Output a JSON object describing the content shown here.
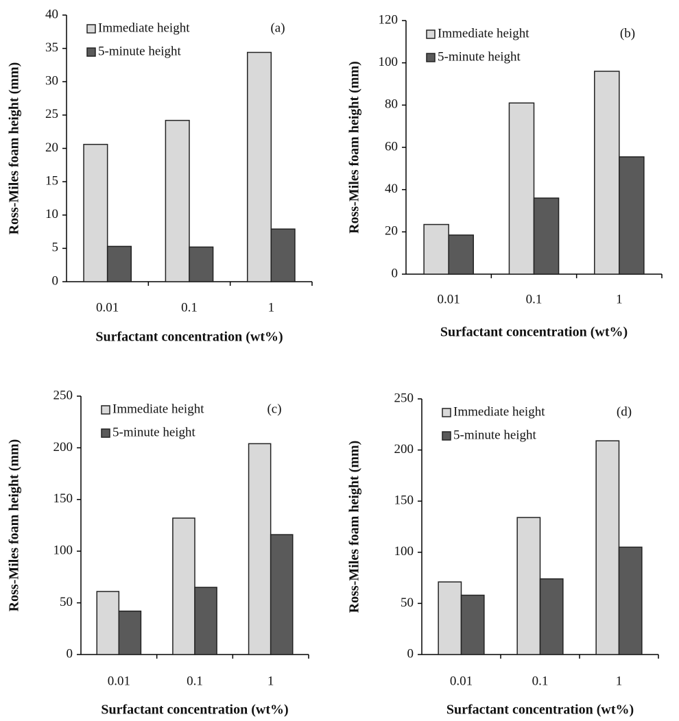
{
  "chart_data": [
    {
      "type": "bar",
      "annotation": "(a)",
      "ylabel": "Ross-Miles foam height (mm)",
      "xlabel": "Surfactant concentration (wt%)",
      "categories": [
        "0.01",
        "0.1",
        "1"
      ],
      "series": [
        {
          "name": "Immediate height",
          "color": "#d9d9d9",
          "values": [
            20.6,
            24.2,
            34.4
          ]
        },
        {
          "name": "5-minute height",
          "color": "#5a5a5a",
          "values": [
            5.3,
            5.2,
            7.9
          ]
        }
      ],
      "ylim": [
        0,
        40
      ],
      "yticks": [
        0,
        5,
        10,
        15,
        20,
        25,
        30,
        35,
        40
      ],
      "grid": false,
      "legend": "upper-left"
    },
    {
      "type": "bar",
      "annotation": "(b)",
      "ylabel": "Ross-Miles foam height (mm)",
      "xlabel": "Surfactant concentration (wt%)",
      "categories": [
        "0.01",
        "0.1",
        "1"
      ],
      "series": [
        {
          "name": "Immediate height",
          "color": "#d9d9d9",
          "values": [
            23.5,
            81,
            96
          ]
        },
        {
          "name": "5-minute height",
          "color": "#5a5a5a",
          "values": [
            18.5,
            36,
            55.5
          ]
        }
      ],
      "ylim": [
        0,
        120
      ],
      "yticks": [
        0,
        20,
        40,
        60,
        80,
        100,
        120
      ],
      "grid": false,
      "legend": "upper-left"
    },
    {
      "type": "bar",
      "annotation": "(c)",
      "ylabel": "Ross-Miles foam height (mm)",
      "xlabel": "Surfactant concentration (wt%)",
      "categories": [
        "0.01",
        "0.1",
        "1"
      ],
      "series": [
        {
          "name": "Immediate height",
          "color": "#d9d9d9",
          "values": [
            61,
            132,
            204
          ]
        },
        {
          "name": "5-minute height",
          "color": "#5a5a5a",
          "values": [
            42,
            65,
            116
          ]
        }
      ],
      "ylim": [
        0,
        250
      ],
      "yticks": [
        0,
        50,
        100,
        150,
        200,
        250
      ],
      "grid": false,
      "legend": "upper-left"
    },
    {
      "type": "bar",
      "annotation": "(d)",
      "ylabel": "Ross-Miles foam height (mm)",
      "xlabel": "Surfactant concentration (wt%)",
      "categories": [
        "0.01",
        "0.1",
        "1"
      ],
      "series": [
        {
          "name": "Immediate height",
          "color": "#d9d9d9",
          "values": [
            71,
            134,
            209
          ]
        },
        {
          "name": "5-minute height",
          "color": "#5a5a5a",
          "values": [
            58,
            74,
            105
          ]
        }
      ],
      "ylim": [
        0,
        250
      ],
      "yticks": [
        0,
        50,
        100,
        150,
        200,
        250
      ],
      "grid": false,
      "legend": "upper-left"
    }
  ]
}
